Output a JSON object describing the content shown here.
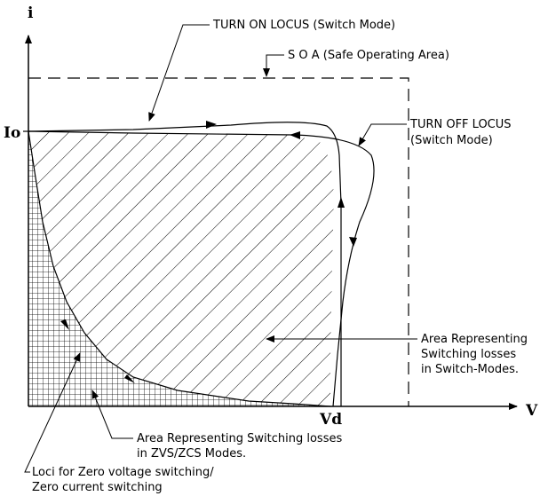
{
  "axes": {
    "y_label": "i",
    "x_label": "V",
    "io_label": "Io",
    "vd_label": "Vd"
  },
  "labels": {
    "turn_on_locus": "TURN ON LOCUS (Switch Mode)",
    "soa": "S O A (Safe Operating Area)",
    "turn_off_locus": [
      "TURN OFF LOCUS",
      "(Switch Mode)"
    ],
    "switch_mode_area": [
      "Area Representing",
      "Switching losses",
      "in Switch-Modes."
    ],
    "zvs_area": [
      "Area Representing Switching losses",
      "in ZVS/ZCS Modes."
    ],
    "soft_switching_loci": [
      "Loci for Zero voltage switching/",
      "Zero current switching"
    ]
  },
  "colors": {
    "line": "#000000",
    "background": "#ffffff"
  }
}
